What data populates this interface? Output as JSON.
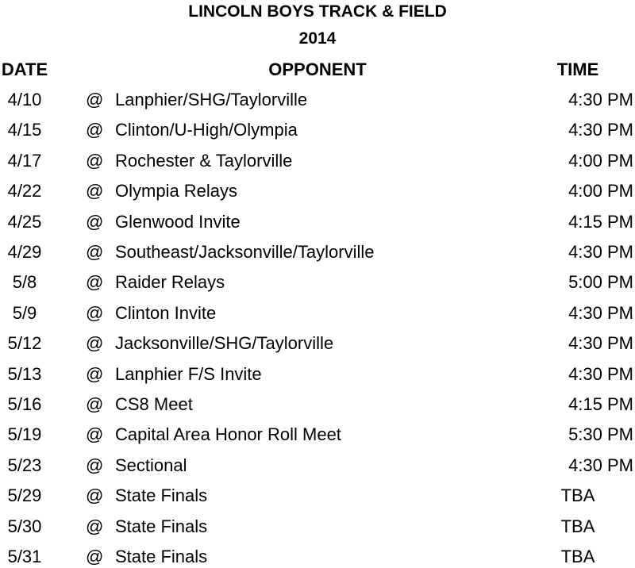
{
  "title": "LINCOLN BOYS TRACK & FIELD",
  "year": "2014",
  "headers": {
    "date": "DATE",
    "opponent": "OPPONENT",
    "time": "TIME"
  },
  "rows": [
    {
      "date": "4/10",
      "at": "@",
      "opponent": "Lanphier/SHG/Taylorville",
      "time": "4:30 PM"
    },
    {
      "date": "4/15",
      "at": "@",
      "opponent": "Clinton/U-High/Olympia",
      "time": "4:30 PM"
    },
    {
      "date": "4/17",
      "at": "@",
      "opponent": "Rochester & Taylorville",
      "time": "4:00 PM"
    },
    {
      "date": "4/22",
      "at": "@",
      "opponent": "Olympia Relays",
      "time": "4:00 PM"
    },
    {
      "date": "4/25",
      "at": "@",
      "opponent": "Glenwood Invite",
      "time": "4:15 PM"
    },
    {
      "date": "4/29",
      "at": "@",
      "opponent": "Southeast/Jacksonville/Taylorville",
      "time": "4:30 PM"
    },
    {
      "date": "5/8",
      "at": "@",
      "opponent": "Raider Relays",
      "time": "5:00 PM"
    },
    {
      "date": "5/9",
      "at": "@",
      "opponent": "Clinton Invite",
      "time": "4:30 PM"
    },
    {
      "date": "5/12",
      "at": "@",
      "opponent": "Jacksonville/SHG/Taylorville",
      "time": "4:30 PM"
    },
    {
      "date": "5/13",
      "at": "@",
      "opponent": "Lanphier F/S Invite",
      "time": "4:30 PM"
    },
    {
      "date": "5/16",
      "at": "@",
      "opponent": "CS8 Meet",
      "time": "4:15 PM"
    },
    {
      "date": "5/19",
      "at": "@",
      "opponent": "Capital Area Honor Roll Meet",
      "time": "5:30 PM"
    },
    {
      "date": "5/23",
      "at": "@",
      "opponent": "Sectional",
      "time": "4:30 PM"
    },
    {
      "date": "5/29",
      "at": "@",
      "opponent": "State Finals",
      "time": "TBA"
    },
    {
      "date": "5/30",
      "at": "@",
      "opponent": "State Finals",
      "time": "TBA"
    },
    {
      "date": "5/31",
      "at": "@",
      "opponent": "State Finals",
      "time": "TBA"
    }
  ]
}
